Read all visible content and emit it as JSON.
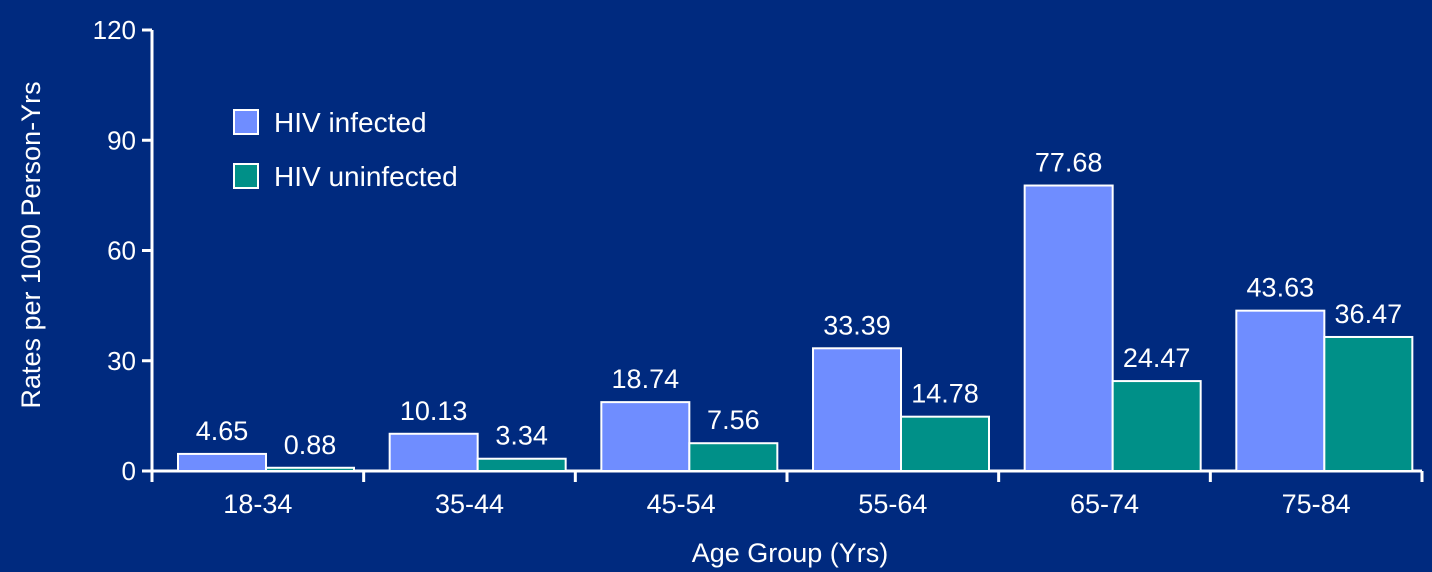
{
  "chart_data": {
    "type": "bar",
    "categories": [
      "18-34",
      "35-44",
      "45-54",
      "55-64",
      "65-74",
      "75-84"
    ],
    "series": [
      {
        "name": "HIV infected",
        "color": "#6f8dff",
        "values": [
          4.65,
          10.13,
          18.74,
          33.39,
          77.68,
          43.63
        ]
      },
      {
        "name": "HIV uninfected",
        "color": "#009088",
        "values": [
          0.88,
          3.34,
          7.56,
          14.78,
          24.47,
          36.47
        ]
      }
    ],
    "xlabel": "Age Group (Yrs)",
    "ylabel": "Rates per 1000 Person-Yrs",
    "ylim": [
      0,
      120
    ],
    "yticks": [
      0,
      30,
      60,
      90,
      120
    ],
    "legend_position": "top-left",
    "grid": false
  },
  "colors": {
    "background": "#002a7f",
    "axis": "#ffffff",
    "bar_border": "#ffffff"
  }
}
